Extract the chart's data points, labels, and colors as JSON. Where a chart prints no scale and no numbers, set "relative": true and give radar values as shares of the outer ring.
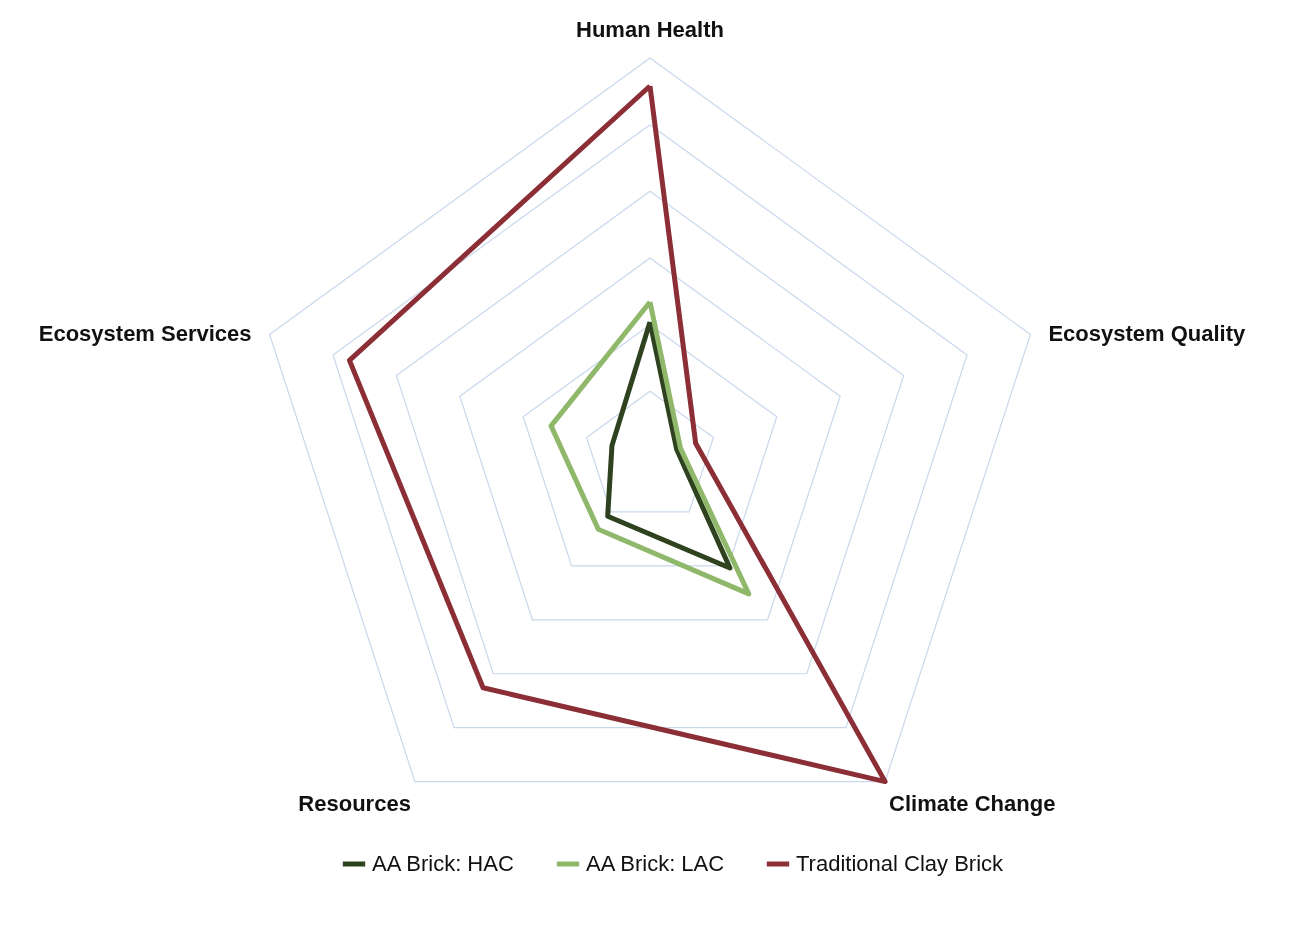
{
  "chart_data": {
    "type": "radar",
    "relative": true,
    "grid": true,
    "legend": "bottom",
    "marker": "none",
    "categories": [
      "Human Health",
      "Ecosystem Quality",
      "Climate Change",
      "Resources",
      "Ecosystem Services"
    ],
    "series": [
      {
        "name": "AA Brick: HAC",
        "color": "#2f4220",
        "values": [
          0.34,
          0.07,
          0.34,
          0.18,
          0.1
        ]
      },
      {
        "name": "AA Brick: LAC",
        "color": "#8fb86a",
        "values": [
          0.39,
          0.08,
          0.42,
          0.22,
          0.26
        ]
      },
      {
        "name": "Traditional Clay Brick",
        "color": "#8b2e35",
        "values": [
          0.93,
          0.12,
          1,
          0.71,
          0.79
        ]
      }
    ]
  }
}
